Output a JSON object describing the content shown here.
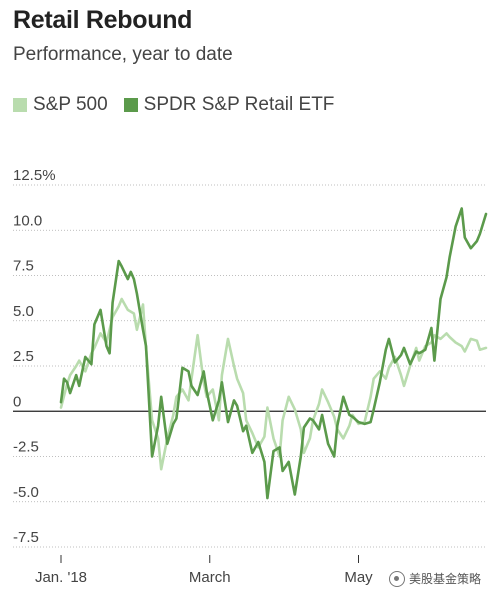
{
  "chart_data": {
    "type": "line",
    "title": "Retail Rebound",
    "subtitle": "Performance, year to date",
    "xlabel": "",
    "ylabel": "",
    "ylim": [
      -7.5,
      12.5
    ],
    "xlim": [
      0,
      140
    ],
    "y_ticks": [
      {
        "value": 12.5,
        "label": "12.5%"
      },
      {
        "value": 10.0,
        "label": "10.0"
      },
      {
        "value": 7.5,
        "label": "7.5"
      },
      {
        "value": 5.0,
        "label": "5.0"
      },
      {
        "value": 2.5,
        "label": "2.5"
      },
      {
        "value": 0,
        "label": "0"
      },
      {
        "value": -2.5,
        "label": "-2.5"
      },
      {
        "value": -5.0,
        "label": "-5.0"
      },
      {
        "value": -7.5,
        "label": "-7.5"
      }
    ],
    "x_ticks": [
      {
        "value": 0,
        "label": "Jan. '18"
      },
      {
        "value": 49,
        "label": "March"
      },
      {
        "value": 98,
        "label": "May"
      }
    ],
    "grid": "horizontal-dotted",
    "legend_position": "top-left",
    "series": [
      {
        "name": "S&P 500",
        "color": "#b9dcae",
        "x": [
          0,
          2,
          3,
          5,
          6,
          8,
          10,
          11,
          13,
          15,
          17,
          19,
          20,
          22,
          24,
          25,
          27,
          28,
          30,
          32,
          33,
          35,
          37,
          38,
          40,
          42,
          43,
          45,
          47,
          48,
          50,
          52,
          53,
          55,
          57,
          58,
          60,
          61,
          63,
          65,
          67,
          68,
          70,
          72,
          73,
          75,
          77,
          79,
          80,
          82,
          83,
          85,
          86,
          88,
          90,
          91,
          93,
          95,
          96,
          98,
          100,
          102,
          103,
          105,
          107,
          108,
          110,
          112,
          113,
          115,
          117,
          118,
          120,
          122,
          123,
          125,
          127,
          128,
          130,
          132,
          133,
          135,
          137,
          138,
          140
        ],
        "values": [
          0.2,
          1.5,
          2.0,
          2.5,
          2.8,
          2.2,
          3.2,
          3.5,
          4.3,
          3.8,
          5.2,
          5.8,
          6.2,
          5.6,
          5.4,
          4.5,
          5.9,
          3.5,
          -0.5,
          -1.5,
          -3.2,
          -1.5,
          -0.2,
          0.8,
          1.2,
          0.6,
          1.8,
          4.2,
          1.6,
          0.8,
          1.2,
          -0.5,
          2.0,
          4.0,
          2.5,
          1.8,
          1.0,
          -0.5,
          -1.2,
          -2.0,
          -1.4,
          0.2,
          -1.5,
          -2.5,
          -0.5,
          0.8,
          0.1,
          -1.0,
          -2.3,
          -1.5,
          -0.5,
          0.4,
          1.2,
          0.5,
          -0.3,
          -1.0,
          -1.5,
          -0.8,
          -0.2,
          -0.7,
          -0.6,
          0.8,
          1.8,
          2.2,
          1.8,
          2.4,
          3.0,
          2.0,
          1.4,
          2.5,
          3.5,
          2.8,
          3.6,
          3.8,
          4.2,
          4.0,
          4.3,
          4.1,
          3.8,
          3.6,
          3.3,
          4.0,
          3.9,
          3.4,
          3.5
        ]
      },
      {
        "name": "SPDR S&P Retail ETF",
        "color": "#5b9a4b",
        "x": [
          0,
          1,
          2,
          3,
          5,
          6,
          8,
          10,
          11,
          13,
          15,
          16,
          17,
          19,
          20,
          22,
          23,
          24,
          25,
          27,
          28,
          30,
          32,
          33,
          35,
          37,
          38,
          40,
          42,
          43,
          45,
          47,
          48,
          50,
          52,
          53,
          55,
          57,
          58,
          60,
          61,
          63,
          65,
          67,
          68,
          70,
          72,
          73,
          75,
          77,
          79,
          80,
          82,
          83,
          85,
          86,
          88,
          90,
          91,
          93,
          95,
          96,
          98,
          100,
          102,
          103,
          105,
          107,
          108,
          110,
          112,
          113,
          115,
          117,
          118,
          120,
          122,
          123,
          125,
          127,
          128,
          130,
          132,
          133,
          135,
          137,
          138,
          140
        ],
        "values": [
          0.5,
          1.8,
          1.6,
          1.0,
          2.0,
          1.4,
          3.0,
          2.6,
          4.8,
          5.6,
          3.6,
          3.2,
          6.0,
          8.3,
          8.0,
          7.3,
          7.7,
          7.3,
          6.5,
          4.5,
          3.6,
          -2.5,
          -0.8,
          0.8,
          -1.8,
          -0.7,
          -0.4,
          2.4,
          2.2,
          1.4,
          0.9,
          2.2,
          1.1,
          -0.5,
          0.6,
          1.6,
          -0.6,
          0.6,
          0.3,
          -1.1,
          -0.8,
          -2.3,
          -1.7,
          -2.8,
          -4.8,
          -2.2,
          -2.0,
          -3.3,
          -2.8,
          -4.6,
          -2.5,
          -0.9,
          -0.4,
          -0.5,
          -1.0,
          -0.2,
          -1.8,
          -2.5,
          -0.8,
          0.8,
          -0.2,
          -0.3,
          -0.6,
          -0.7,
          -0.6,
          0.1,
          1.6,
          3.4,
          4.0,
          2.7,
          3.1,
          3.5,
          2.6,
          3.3,
          3.2,
          3.4,
          4.6,
          2.8,
          6.2,
          7.4,
          8.5,
          10.2,
          11.2,
          9.6,
          9.0,
          9.4,
          9.8,
          10.9
        ]
      }
    ]
  },
  "watermark": "美股基金策略",
  "watermark_icon": "wechat-icon"
}
